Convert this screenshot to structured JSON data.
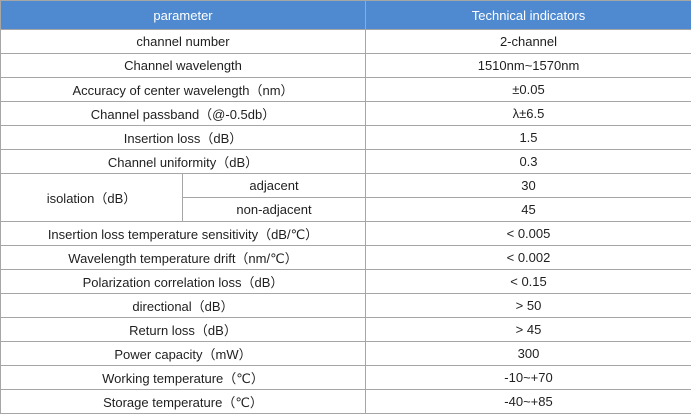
{
  "colors": {
    "header_bg": "#4f89d0",
    "border": "#a6a6a6",
    "header_text": "#ffffff",
    "body_text": "#1f1f1f"
  },
  "table": {
    "header": {
      "param": "parameter",
      "value": "Technical indicators"
    },
    "rows_top": [
      {
        "param": "channel number",
        "value": "2-channel"
      },
      {
        "param": "Channel wavelength",
        "value": "1510nm~1570nm"
      },
      {
        "param": "Accuracy of center wavelength（nm）",
        "value": "±0.05"
      },
      {
        "param": "Channel passband（@-0.5db）",
        "value": "λ±6.5"
      },
      {
        "param": "Insertion loss（dB）",
        "value": "1.5"
      },
      {
        "param": "Channel uniformity（dB）",
        "value": "0.3"
      }
    ],
    "isolation": {
      "param": "isolation（dB）",
      "sub": [
        {
          "label": "adjacent",
          "value": "30"
        },
        {
          "label": "non-adjacent",
          "value": "45"
        }
      ]
    },
    "rows_bottom": [
      {
        "param": "Insertion loss temperature sensitivity（dB/℃）",
        "value": "< 0.005"
      },
      {
        "param": "Wavelength temperature drift（nm/℃）",
        "value": "< 0.002"
      },
      {
        "param": "Polarization correlation loss（dB）",
        "value": "< 0.15"
      },
      {
        "param": "directional（dB）",
        "value": "> 50"
      },
      {
        "param": "Return loss（dB）",
        "value": "> 45"
      },
      {
        "param": "Power capacity（mW）",
        "value": "300"
      },
      {
        "param": "Working temperature（℃）",
        "value": "-10~+70"
      },
      {
        "param": "Storage temperature（℃）",
        "value": "-40~+85"
      }
    ]
  }
}
